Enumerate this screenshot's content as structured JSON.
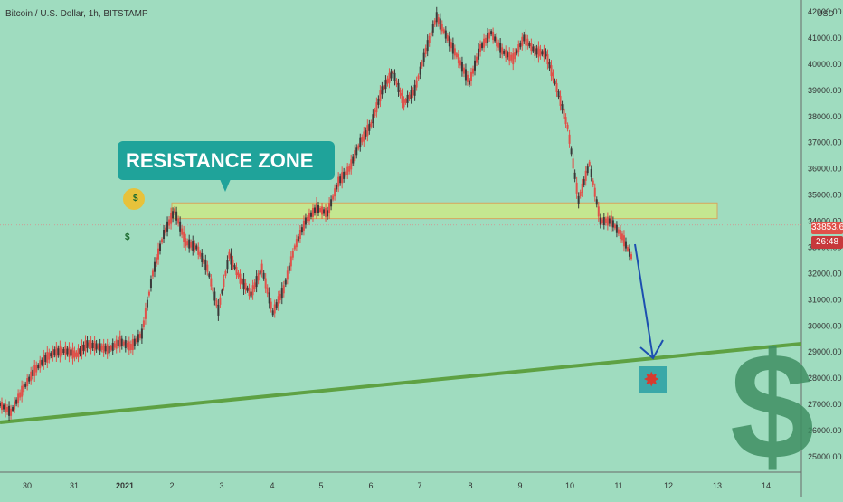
{
  "header": {
    "title": "Bitcoin / U.S. Dollar, 1h, BITSTAMP"
  },
  "currency": "USD",
  "callout_text": "RESISTANCE ZONE",
  "price_tags": {
    "last_price": "33853.60",
    "countdown": "26:48"
  },
  "colors": {
    "background": "#9fdcbf",
    "up_candle": "#3a3a3a",
    "down_candle": "#e0514a",
    "zone_fill": "#c6e88e",
    "trendline": "#5ea143",
    "arrow": "#1c4fb0"
  },
  "chart_data": {
    "type": "line",
    "title": "Bitcoin / U.S. Dollar, 1h, BITSTAMP",
    "xlabel": "",
    "ylabel": "USD",
    "x_ticks": [
      "30",
      "31",
      "2021",
      "2",
      "3",
      "4",
      "5",
      "6",
      "7",
      "8",
      "9",
      "10",
      "11",
      "12",
      "13",
      "14"
    ],
    "y_ticks": [
      25000,
      26000,
      27000,
      28000,
      29000,
      30000,
      31000,
      32000,
      33000,
      34000,
      35000,
      36000,
      37000,
      38000,
      39000,
      40000,
      41000,
      42000
    ],
    "ylim": [
      24600,
      42300
    ],
    "xlim": [
      29.8,
      14.7
    ],
    "series": [
      {
        "values_x": [
          29.8,
          30,
          30.2,
          30.4,
          30.6,
          30.8,
          31,
          31.2,
          31.4,
          31.6,
          31.8,
          32,
          32.2,
          32.4,
          32.6,
          32.8,
          33,
          33.2,
          33.4,
          33.6,
          33.8,
          34,
          34.2,
          34.4,
          34.6,
          34.8,
          35,
          35.2,
          35.4,
          35.6,
          35.8,
          36,
          36.2,
          36.4,
          36.6,
          36.8,
          37,
          37.2,
          37.4,
          37.6,
          37.8,
          38,
          38.2,
          38.4,
          38.6,
          38.8,
          39,
          39.2,
          39.4,
          39.6,
          39.8,
          40,
          40.2,
          40.4,
          40.6,
          40.8,
          41,
          41.2,
          41.4
        ],
        "values_y": [
          27000,
          26700,
          27500,
          28200,
          28700,
          29000,
          29050,
          28900,
          29300,
          29200,
          29100,
          29400,
          29200,
          29700,
          32000,
          33500,
          34400,
          33200,
          33000,
          32200,
          30600,
          32700,
          31800,
          31200,
          32200,
          30500,
          31400,
          33000,
          34000,
          34500,
          34300,
          35500,
          36000,
          37000,
          37700,
          39000,
          39700,
          38500,
          39000,
          40500,
          41800,
          41000,
          40200,
          39300,
          40600,
          41200,
          40500,
          40200,
          41000,
          40500,
          40400,
          39100,
          37600,
          34800,
          36200,
          34000,
          34000,
          33400,
          32500
        ]
      }
    ],
    "resistance_zone": {
      "low": 34100,
      "high": 34700,
      "x_start": 2,
      "x_end": 13
    },
    "trendline": {
      "x_start": 29.8,
      "y_start": 26200,
      "x_end": 14.7,
      "y_end": 29400
    },
    "annotations": [
      "RESISTANCE ZONE"
    ]
  }
}
